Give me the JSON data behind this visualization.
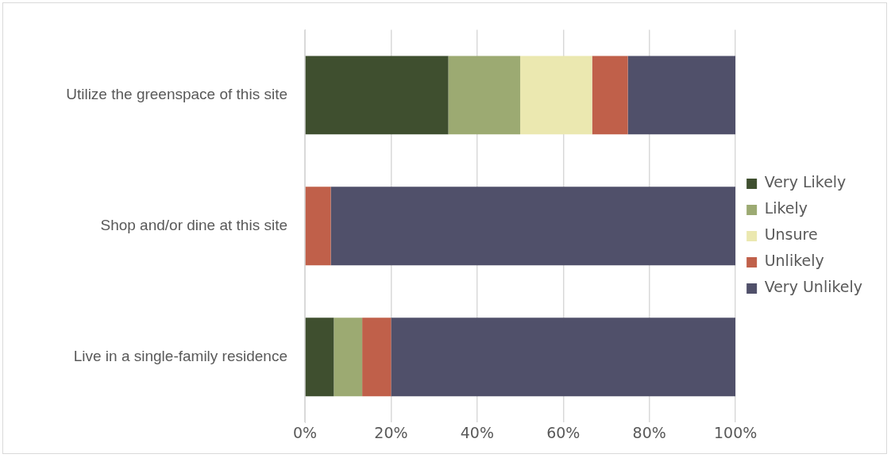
{
  "chart_data": {
    "type": "bar",
    "orientation": "horizontal",
    "stacked": true,
    "categories": [
      "Utilize the greenspace of this site",
      "Shop and/or dine at this site",
      "Live in a single-family residence"
    ],
    "series": [
      {
        "name": "Very Likely",
        "color": "#3f4f2f",
        "values": [
          33.3,
          0,
          6.7
        ]
      },
      {
        "name": "Likely",
        "color": "#9caa72",
        "values": [
          16.7,
          0,
          6.6
        ]
      },
      {
        "name": "Unsure",
        "color": "#ebe8b0",
        "values": [
          16.7,
          0,
          0
        ]
      },
      {
        "name": "Unlikely",
        "color": "#c0604a",
        "values": [
          8.3,
          6,
          6.7
        ]
      },
      {
        "name": "Very Unlikely",
        "color": "#50506a",
        "values": [
          25,
          94,
          80
        ]
      }
    ],
    "xlim": [
      0,
      100
    ],
    "xticks": [
      {
        "value": 0,
        "label": "0%"
      },
      {
        "value": 20,
        "label": "20%"
      },
      {
        "value": 40,
        "label": "40%"
      },
      {
        "value": 60,
        "label": "60%"
      },
      {
        "value": 80,
        "label": "80%"
      },
      {
        "value": 100,
        "label": "100%"
      }
    ],
    "grid": "x",
    "legend": "right"
  }
}
